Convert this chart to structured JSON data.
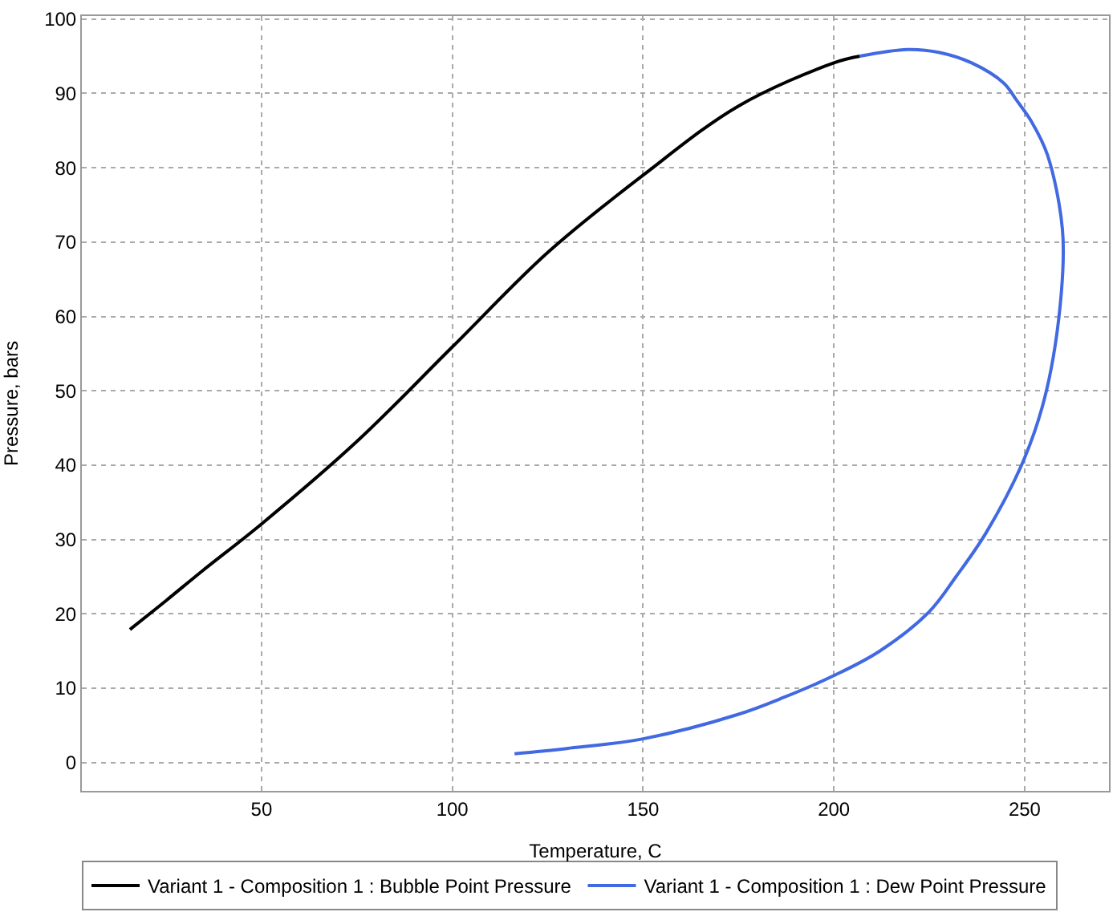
{
  "chart_data": {
    "type": "line",
    "xlabel": "Temperature, C",
    "ylabel": "Pressure, bars",
    "xlim": [
      2.9,
      272.1
    ],
    "ylim": [
      -3.8,
      100.4
    ],
    "xticks": [
      50,
      100,
      150,
      200,
      250
    ],
    "yticks": [
      0,
      10,
      20,
      30,
      40,
      50,
      60,
      70,
      80,
      90,
      100
    ],
    "grid": true,
    "legend": "bottom",
    "marker": "none",
    "line_style": "solid",
    "series": [
      {
        "name": "Variant 1 - Composition 1 : Bubble Point Pressure",
        "color": "#000000",
        "x": [
          15.5,
          25,
          35,
          50,
          75,
          100,
          125,
          150,
          175,
          200,
          206.8
        ],
        "values": [
          17.9,
          21.8,
          26.0,
          32.1,
          43.2,
          55.9,
          68.6,
          79.0,
          88.3,
          94.1,
          95.0
        ]
      },
      {
        "name": "Variant 1 - Composition 1 : Dew Point Pressure",
        "color": "#4169e1",
        "x": [
          116.3,
          130,
          150,
          175,
          187,
          200,
          212,
          225,
          232,
          240,
          250,
          255.7,
          259.6,
          259.9,
          256.0,
          251.8,
          248.0,
          244.5,
          236.1,
          227.7,
          219.3,
          206.8
        ],
        "values": [
          1.2,
          1.9,
          3.2,
          6.5,
          8.8,
          11.7,
          15.0,
          20.3,
          25.0,
          31.0,
          41.0,
          50.0,
          63.1,
          71.7,
          81.7,
          86.2,
          89.0,
          91.4,
          94.1,
          95.5,
          95.9,
          95.0
        ]
      }
    ]
  }
}
